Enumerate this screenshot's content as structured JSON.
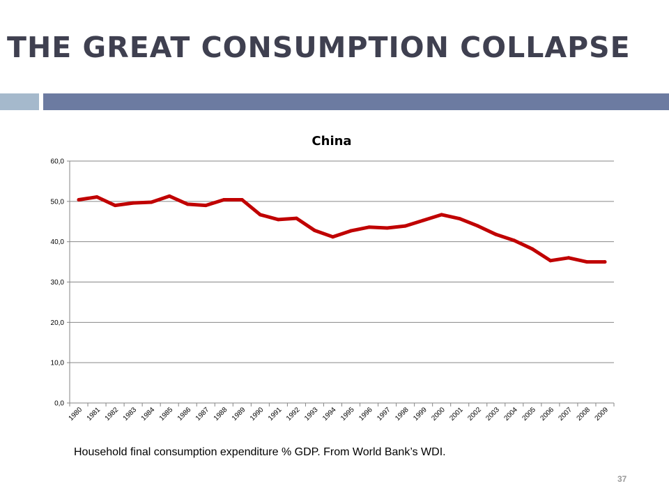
{
  "slide": {
    "title": "THE GREAT CONSUMPTION COLLAPSE",
    "caption": "Household final consumption expenditure % GDP. From World Bank’s WDI.",
    "page_number": "37",
    "colors": {
      "title": "#3f4050",
      "bar_light": "#a5b9cc",
      "bar_dark": "#6c7ba1",
      "series": "#c00000"
    }
  },
  "chart_data": {
    "type": "line",
    "title": "China",
    "xlabel": "",
    "ylabel": "",
    "ylim": [
      0,
      60
    ],
    "yticks": [
      "0,0",
      "10,0",
      "20,0",
      "30,0",
      "40,0",
      "50,0",
      "60,0"
    ],
    "grid": true,
    "legend": "none",
    "categories": [
      "1980",
      "1981",
      "1982",
      "1983",
      "1984",
      "1985",
      "1986",
      "1987",
      "1988",
      "1989",
      "1990",
      "1991",
      "1992",
      "1993",
      "1994",
      "1995",
      "1996",
      "1997",
      "1998",
      "1999",
      "2000",
      "2001",
      "2002",
      "2003",
      "2004",
      "2005",
      "2006",
      "2007",
      "2008",
      "2009"
    ],
    "series": [
      {
        "color": "#c00000",
        "values": [
          50.4,
          51.1,
          49.0,
          49.6,
          49.8,
          51.3,
          49.3,
          49.0,
          50.4,
          50.4,
          46.7,
          45.5,
          45.8,
          42.8,
          41.2,
          42.7,
          43.6,
          43.4,
          43.9,
          45.3,
          46.7,
          45.7,
          43.9,
          41.8,
          40.3,
          38.2,
          35.3,
          36.0,
          35.0,
          35.0
        ]
      }
    ]
  }
}
